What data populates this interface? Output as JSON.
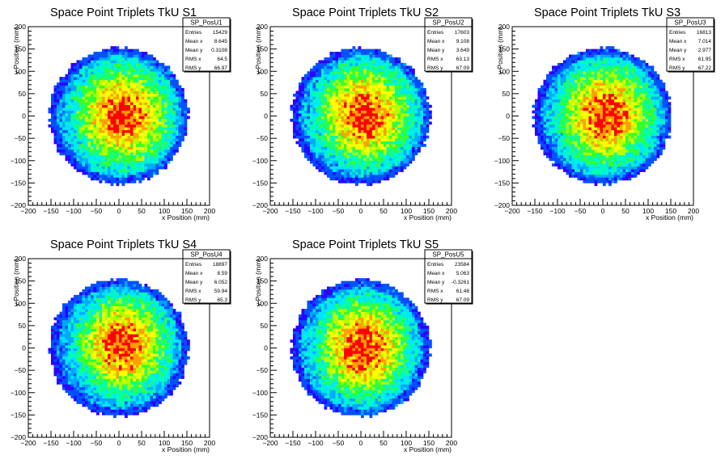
{
  "chart_data": [
    {
      "type": "heatmap",
      "title": "Space Point Triplets TkU S1",
      "xlabel": "x Position (mm)",
      "ylabel": "y Position (mm)",
      "xlim": [
        -200,
        200
      ],
      "ylim": [
        -200,
        200
      ],
      "x_ticks": [
        "−200",
        "−150",
        "−100",
        "−50",
        "0",
        "50",
        "100",
        "150",
        "200"
      ],
      "y_ticks": [
        "−200",
        "−150",
        "−100",
        "−50",
        "0",
        "50",
        "100",
        "150",
        "200"
      ],
      "stats": {
        "name": "SP_PosU1",
        "rows": [
          {
            "label": "Entries",
            "value": "15429"
          },
          {
            "label": "Mean x",
            "value": "8.645"
          },
          {
            "label": "Mean y",
            "value": "0.3108"
          },
          {
            "label": "RMS x",
            "value": "64.5"
          },
          {
            "label": "RMS y",
            "value": "66.97"
          }
        ]
      },
      "distribution": {
        "mean_x": 8.645,
        "mean_y": 0.3108,
        "rms_x": 64.5,
        "rms_y": 66.97,
        "radius": 150
      }
    },
    {
      "type": "heatmap",
      "title": "Space Point Triplets TkU S2",
      "xlabel": "x Position (mm)",
      "ylabel": "y Position (mm)",
      "xlim": [
        -200,
        200
      ],
      "ylim": [
        -200,
        200
      ],
      "x_ticks": [
        "−200",
        "−150",
        "−100",
        "−50",
        "0",
        "50",
        "100",
        "150",
        "200"
      ],
      "y_ticks": [
        "−200",
        "−150",
        "−100",
        "−50",
        "0",
        "50",
        "100",
        "150",
        "200"
      ],
      "stats": {
        "name": "SP_PosU2",
        "rows": [
          {
            "label": "Entries",
            "value": "17603"
          },
          {
            "label": "Mean x",
            "value": "9.108"
          },
          {
            "label": "Mean y",
            "value": "3.649"
          },
          {
            "label": "RMS x",
            "value": "63.13"
          },
          {
            "label": "RMS y",
            "value": "67.09"
          }
        ]
      },
      "distribution": {
        "mean_x": 9.108,
        "mean_y": 3.649,
        "rms_x": 63.13,
        "rms_y": 67.09,
        "radius": 150
      }
    },
    {
      "type": "heatmap",
      "title": "Space Point Triplets TkU S3",
      "xlabel": "x Position (mm)",
      "ylabel": "y Position (mm)",
      "xlim": [
        -200,
        200
      ],
      "ylim": [
        -200,
        200
      ],
      "x_ticks": [
        "−200",
        "−150",
        "−100",
        "−50",
        "0",
        "50",
        "100",
        "150",
        "200"
      ],
      "y_ticks": [
        "−200",
        "−150",
        "−100",
        "−50",
        "0",
        "50",
        "100",
        "150",
        "200"
      ],
      "stats": {
        "name": "SP_PosU3",
        "rows": [
          {
            "label": "Entries",
            "value": "16813"
          },
          {
            "label": "Mean x",
            "value": "7.014"
          },
          {
            "label": "Mean y",
            "value": "2.977"
          },
          {
            "label": "RMS x",
            "value": "61.95"
          },
          {
            "label": "RMS y",
            "value": "67.22"
          }
        ]
      },
      "distribution": {
        "mean_x": 7.014,
        "mean_y": 2.977,
        "rms_x": 61.95,
        "rms_y": 67.22,
        "radius": 150
      }
    },
    {
      "type": "heatmap",
      "title": "Space Point Triplets TkU S4",
      "xlabel": "x Position (mm)",
      "ylabel": "y Position (mm)",
      "xlim": [
        -200,
        200
      ],
      "ylim": [
        -200,
        200
      ],
      "x_ticks": [
        "−200",
        "−150",
        "−100",
        "−50",
        "0",
        "50",
        "100",
        "150",
        "200"
      ],
      "y_ticks": [
        "−200",
        "−150",
        "−100",
        "−50",
        "0",
        "50",
        "100",
        "150",
        "200"
      ],
      "stats": {
        "name": "SP_PosU4",
        "rows": [
          {
            "label": "Entries",
            "value": "18897"
          },
          {
            "label": "Mean x",
            "value": "8.59"
          },
          {
            "label": "Mean y",
            "value": "6.052"
          },
          {
            "label": "RMS x",
            "value": "59.94"
          },
          {
            "label": "RMS y",
            "value": "65.3"
          }
        ]
      },
      "distribution": {
        "mean_x": 8.59,
        "mean_y": 6.052,
        "rms_x": 59.94,
        "rms_y": 65.3,
        "radius": 150
      }
    },
    {
      "type": "heatmap",
      "title": "Space Point Triplets TkU S5",
      "xlabel": "x Position (mm)",
      "ylabel": "y Position (mm)",
      "xlim": [
        -200,
        200
      ],
      "ylim": [
        -200,
        200
      ],
      "x_ticks": [
        "−200",
        "−150",
        "−100",
        "−50",
        "0",
        "50",
        "100",
        "150",
        "200"
      ],
      "y_ticks": [
        "−200",
        "−150",
        "−100",
        "−50",
        "0",
        "50",
        "100",
        "150",
        "200"
      ],
      "stats": {
        "name": "SP_PosU5",
        "rows": [
          {
            "label": "Entries",
            "value": "23584"
          },
          {
            "label": "Mean x",
            "value": "5.063"
          },
          {
            "label": "Mean y",
            "value": "-0.3261"
          },
          {
            "label": "RMS x",
            "value": "61.48"
          },
          {
            "label": "RMS y",
            "value": "67.09"
          }
        ]
      },
      "distribution": {
        "mean_x": 5.063,
        "mean_y": -0.3261,
        "rms_x": 61.48,
        "rms_y": 67.09,
        "radius": 150
      }
    }
  ],
  "colors": {
    "palette": [
      "#2a00ff",
      "#0051ff",
      "#00a8ff",
      "#00e6ff",
      "#00ffb0",
      "#33ff33",
      "#b3ff00",
      "#ffff00",
      "#ffa000",
      "#ff0000"
    ],
    "axis": "#000000",
    "background": "#ffffff"
  }
}
